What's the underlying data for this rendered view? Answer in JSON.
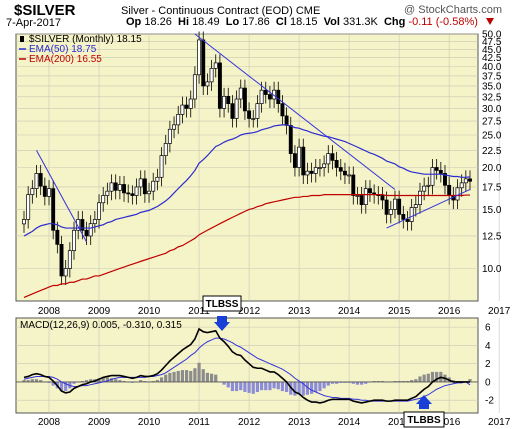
{
  "header": {
    "symbol": "$SILVER",
    "subtitle": "Silver - Continuous Contract (EOD)",
    "exchange": "CME",
    "brand": "@ StockCharts.com",
    "date": "7-Apr-2017",
    "open_label": "Op",
    "open": "18.26",
    "high_label": "Hi",
    "high": "18.49",
    "low_label": "Lo",
    "low": "17.86",
    "close_label": "Cl",
    "close": "18.15",
    "vol_label": "Vol",
    "vol": "331.3K",
    "chg_label": "Chg",
    "chg": "-0.11 (-0.58%)"
  },
  "colors": {
    "panel_bg": "#f5f3c8",
    "grid": "#c8c8b4",
    "ema50": "#2b2bd0",
    "ema200": "#c00000",
    "trendline": "#3333dd",
    "macd": "#000000",
    "signal": "#3333dd",
    "hist_pos": "#8c8c8c",
    "hist_neg": "#8c8cd8",
    "chg_red": "#c00000"
  },
  "chart_data": [
    {
      "type": "candlestick",
      "legend": [
        "$SILVER (Monthly) 18.15",
        "EMA(50) 18.75",
        "EMA(200) 16.55"
      ],
      "y_ticks": [
        10.0,
        12.5,
        15.0,
        17.5,
        20.0,
        22.5,
        25.0,
        27.5,
        30.0,
        32.5,
        35.0,
        37.5,
        40.0,
        42.5,
        45.0,
        47.5,
        50.0
      ],
      "y_tick_labels": [
        "10.0",
        "12.5",
        "15.0",
        "17.5",
        "20.0",
        "22.5",
        "25.0",
        "27.5",
        "30.0",
        "32.5",
        "35.0",
        "37.5",
        "40.0",
        "42.5",
        "45.0",
        "47.5",
        "50.0"
      ],
      "ylim": [
        8,
        50
      ],
      "scale": "log",
      "x_ticks": [
        "2008",
        "2009",
        "2010",
        "2011",
        "2012",
        "2013",
        "2014",
        "2015",
        "2016",
        "2017"
      ],
      "closes": [
        14.0,
        16.6,
        17.3,
        19.2,
        17.6,
        16.4,
        17.3,
        13.0,
        11.8,
        9.5,
        10.0,
        11.3,
        13.0,
        14.0,
        13.0,
        12.5,
        13.6,
        14.0,
        15.7,
        16.5,
        17.0,
        18.0,
        17.1,
        17.8,
        16.8,
        16.7,
        16.5,
        17.5,
        18.5,
        16.7,
        17.0,
        18.2,
        18.7,
        21.7,
        23.6,
        26.0,
        26.8,
        28.8,
        30.7,
        30.0,
        32.0,
        37.8,
        48.0,
        35.0,
        36.0,
        39.5,
        41.0,
        30.0,
        32.6,
        31.0,
        28.0,
        32.0,
        34.5,
        29.5,
        28.0,
        28.0,
        31.0,
        34.0,
        33.0,
        32.0,
        34.0,
        31.0,
        28.5,
        26.7,
        22.0,
        20.0,
        23.0,
        19.0,
        19.5,
        19.2,
        20.0,
        20.0,
        20.5,
        22.0,
        21.0,
        20.0,
        19.5,
        19.0,
        19.0,
        16.5,
        16.5,
        15.5,
        17.3,
        16.8,
        16.6,
        16.5,
        16.0,
        14.5,
        15.0,
        16.1,
        14.5,
        14.0,
        13.8,
        15.2,
        15.5,
        17.0,
        17.6,
        17.7,
        20.0,
        19.6,
        19.2,
        17.7,
        16.5,
        16.0,
        17.4,
        18.0,
        18.5,
        18.2
      ],
      "ema50": [
        12.5,
        12.7,
        12.9,
        13.2,
        13.4,
        13.5,
        13.6,
        13.6,
        13.5,
        13.3,
        13.2,
        13.2,
        13.2,
        13.2,
        13.2,
        13.2,
        13.2,
        13.3,
        13.4,
        13.5,
        13.7,
        13.8,
        14.0,
        14.1,
        14.2,
        14.3,
        14.4,
        14.5,
        14.7,
        14.8,
        14.9,
        15.1,
        15.3,
        15.6,
        15.9,
        16.3,
        16.8,
        17.3,
        17.8,
        18.3,
        18.9,
        19.6,
        20.6,
        21.1,
        21.7,
        22.4,
        23.1,
        23.4,
        23.8,
        24.1,
        24.3,
        24.6,
        25.0,
        25.2,
        25.3,
        25.4,
        25.6,
        25.9,
        26.1,
        26.3,
        26.6,
        26.7,
        26.8,
        26.8,
        26.6,
        26.3,
        26.2,
        25.9,
        25.7,
        25.4,
        25.2,
        25.0,
        24.8,
        24.7,
        24.5,
        24.3,
        24.1,
        23.9,
        23.6,
        23.3,
        23.0,
        22.7,
        22.4,
        22.1,
        21.9,
        21.6,
        21.3,
        20.9,
        20.7,
        20.5,
        20.1,
        19.9,
        19.6,
        19.4,
        19.3,
        19.2,
        19.1,
        19.1,
        19.1,
        19.1,
        19.1,
        19.0,
        18.9,
        18.8,
        18.8,
        18.7,
        18.7,
        18.75
      ],
      "ema200": [
        8.2,
        8.3,
        8.4,
        8.5,
        8.6,
        8.7,
        8.8,
        8.9,
        8.9,
        9.0,
        9.0,
        9.1,
        9.1,
        9.2,
        9.3,
        9.3,
        9.4,
        9.5,
        9.5,
        9.6,
        9.7,
        9.8,
        9.9,
        10.0,
        10.1,
        10.2,
        10.3,
        10.4,
        10.5,
        10.6,
        10.7,
        10.8,
        10.9,
        11.0,
        11.1,
        11.3,
        11.4,
        11.6,
        11.7,
        11.9,
        12.1,
        12.3,
        12.6,
        12.8,
        13.0,
        13.2,
        13.4,
        13.6,
        13.8,
        14.0,
        14.2,
        14.4,
        14.6,
        14.8,
        15.0,
        15.1,
        15.3,
        15.4,
        15.6,
        15.7,
        15.8,
        15.9,
        16.0,
        16.1,
        16.2,
        16.3,
        16.3,
        16.4,
        16.4,
        16.5,
        16.5,
        16.5,
        16.6,
        16.6,
        16.6,
        16.6,
        16.6,
        16.6,
        16.6,
        16.6,
        16.6,
        16.6,
        16.6,
        16.6,
        16.6,
        16.6,
        16.6,
        16.5,
        16.5,
        16.5,
        16.5,
        16.5,
        16.5,
        16.5,
        16.5,
        16.5,
        16.5,
        16.5,
        16.5,
        16.5,
        16.5,
        16.5,
        16.5,
        16.5,
        16.5,
        16.5,
        16.55,
        16.55
      ]
    },
    {
      "type": "macd",
      "legend": "MACD(12,26,9) 0.005, -0.310, 0.315",
      "y_ticks": [
        -2,
        0,
        2,
        4,
        6
      ],
      "y_tick_labels": [
        "-2",
        "0",
        "2",
        "4",
        "6"
      ],
      "ylim": [
        -3.4,
        7
      ],
      "macd": [
        0.5,
        0.6,
        0.8,
        0.9,
        0.8,
        0.6,
        0.5,
        0.1,
        -0.4,
        -1.0,
        -1.2,
        -1.1,
        -0.7,
        -0.5,
        -0.3,
        -0.2,
        0.0,
        0.1,
        0.3,
        0.5,
        0.6,
        0.7,
        0.7,
        0.7,
        0.6,
        0.5,
        0.4,
        0.5,
        0.7,
        0.6,
        0.6,
        0.7,
        0.9,
        1.3,
        1.8,
        2.3,
        2.7,
        3.1,
        3.5,
        3.8,
        4.1,
        4.7,
        5.8,
        5.5,
        5.4,
        5.5,
        5.6,
        4.8,
        4.4,
        3.9,
        3.3,
        3.0,
        2.9,
        2.4,
        2.0,
        1.6,
        1.5,
        1.5,
        1.3,
        1.1,
        1.1,
        0.8,
        0.4,
        0.0,
        -0.6,
        -1.1,
        -1.3,
        -1.7,
        -2.0,
        -2.2,
        -2.2,
        -2.3,
        -2.2,
        -2.0,
        -1.9,
        -1.9,
        -1.9,
        -1.9,
        -1.9,
        -2.1,
        -2.2,
        -2.3,
        -2.2,
        -2.1,
        -2.0,
        -2.0,
        -2.0,
        -2.1,
        -2.1,
        -2.0,
        -2.0,
        -2.0,
        -2.0,
        -1.8,
        -1.6,
        -1.2,
        -0.8,
        -0.5,
        0.0,
        0.3,
        0.5,
        0.4,
        0.2,
        0.0,
        0.0,
        0.0,
        0.0,
        0.005
      ],
      "signal": [
        0.3,
        0.4,
        0.5,
        0.6,
        0.6,
        0.6,
        0.6,
        0.5,
        0.3,
        0.0,
        -0.2,
        -0.4,
        -0.5,
        -0.5,
        -0.4,
        -0.4,
        -0.3,
        -0.2,
        -0.1,
        0.0,
        0.1,
        0.3,
        0.4,
        0.5,
        0.5,
        0.5,
        0.5,
        0.5,
        0.5,
        0.5,
        0.6,
        0.6,
        0.7,
        0.8,
        1.0,
        1.3,
        1.6,
        1.9,
        2.2,
        2.5,
        2.9,
        3.2,
        3.7,
        4.1,
        4.4,
        4.6,
        4.8,
        4.8,
        4.7,
        4.5,
        4.3,
        4.0,
        3.8,
        3.5,
        3.2,
        2.9,
        2.6,
        2.4,
        2.2,
        2.0,
        1.8,
        1.6,
        1.4,
        1.1,
        0.8,
        0.4,
        0.1,
        -0.2,
        -0.6,
        -0.9,
        -1.1,
        -1.3,
        -1.5,
        -1.6,
        -1.7,
        -1.7,
        -1.8,
        -1.8,
        -1.8,
        -1.9,
        -1.9,
        -2.0,
        -2.0,
        -2.1,
        -2.1,
        -2.1,
        -2.1,
        -2.1,
        -2.1,
        -2.1,
        -2.1,
        -2.1,
        -2.1,
        -2.0,
        -1.9,
        -1.8,
        -1.6,
        -1.4,
        -1.1,
        -0.8,
        -0.6,
        -0.4,
        -0.3,
        -0.2,
        -0.1,
        -0.1,
        0.0,
        -0.31
      ]
    }
  ],
  "x_tick_labels": [
    "2008",
    "2009",
    "2010",
    "2011",
    "2012",
    "2013",
    "2014",
    "2015",
    "2016",
    "2017"
  ],
  "annotations": {
    "top": "TLBSS",
    "bottom": "TLBBS"
  }
}
